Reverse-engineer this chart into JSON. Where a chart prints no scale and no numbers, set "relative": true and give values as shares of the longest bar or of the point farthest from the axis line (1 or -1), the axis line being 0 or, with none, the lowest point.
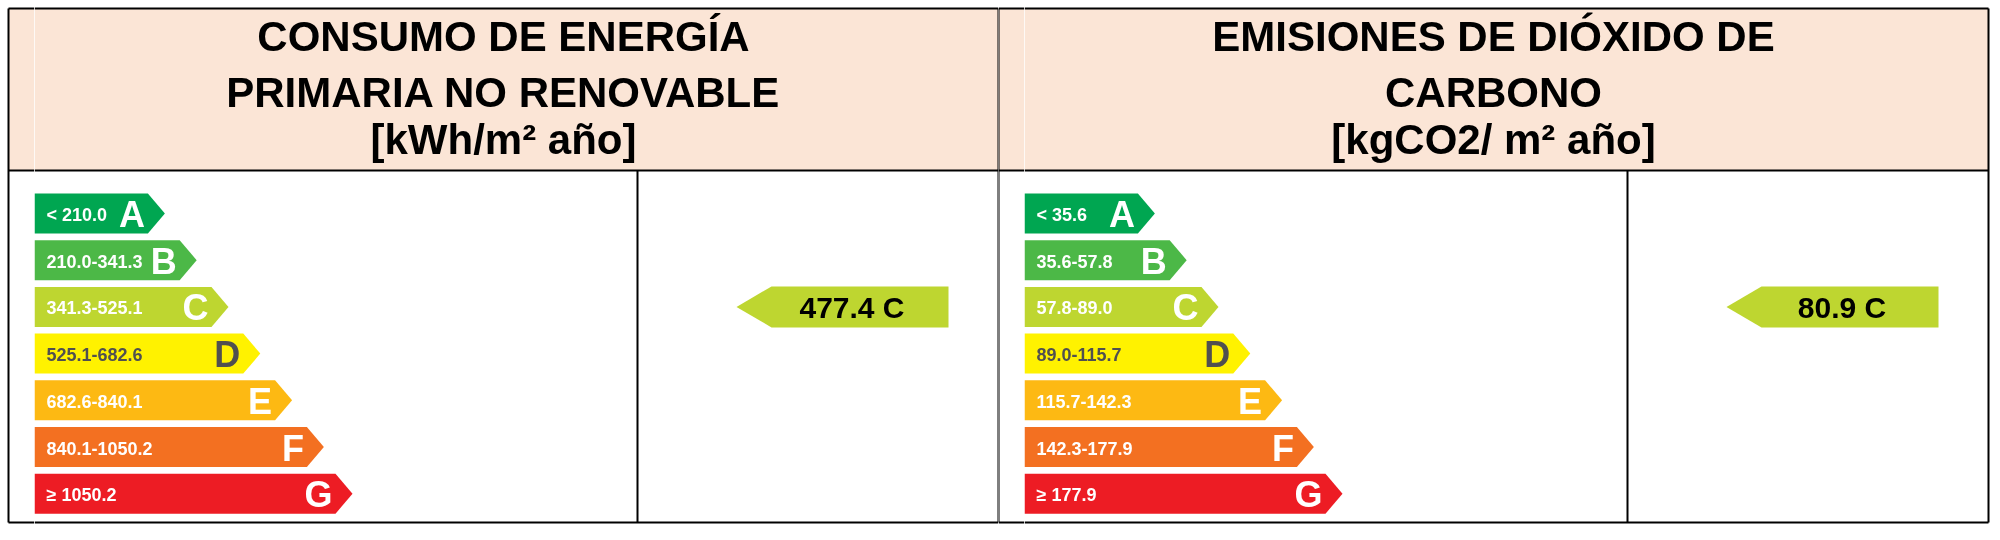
{
  "chart_data": [
    {
      "type": "bar",
      "orientation": "horizontal",
      "relative": true,
      "title": "CONSUMO DE ENERGÍA PRIMARIA NO RENOVABLE",
      "subtitle": "[kWh/m² año]",
      "categories": [
        "A",
        "B",
        "C",
        "D",
        "E",
        "F",
        "G"
      ],
      "values": [
        0.41,
        0.51,
        0.61,
        0.71,
        0.81,
        0.91,
        1
      ],
      "colors": [
        "#00a651",
        "#4cb847",
        "#bed630",
        "#fff200",
        "#fdb913",
        "#f37021",
        "#ed1c24"
      ],
      "annotations": [
        "< 210.0",
        "210.0-341.3",
        "341.3-525.1",
        "525.1-682.6",
        "682.6-840.1",
        "840.1-1050.2",
        "≥ 1050.2",
        "477.4 C"
      ]
    },
    {
      "type": "bar",
      "orientation": "horizontal",
      "relative": true,
      "title": "EMISIONES DE DIÓXIDO DE CARBONO",
      "subtitle": "[kgCO2/ m² año]",
      "categories": [
        "A",
        "B",
        "C",
        "D",
        "E",
        "F",
        "G"
      ],
      "values": [
        0.41,
        0.51,
        0.61,
        0.71,
        0.81,
        0.91,
        1
      ],
      "colors": [
        "#00a651",
        "#4cb847",
        "#bed630",
        "#fff200",
        "#fdb913",
        "#f37021",
        "#ed1c24"
      ],
      "annotations": [
        "< 35.6",
        "35.6-57.8",
        "57.8-89.0",
        "89.0-115.7",
        "115.7-142.3",
        "142.3-177.9",
        "≥ 177.9",
        "80.9 C"
      ]
    }
  ]
}
